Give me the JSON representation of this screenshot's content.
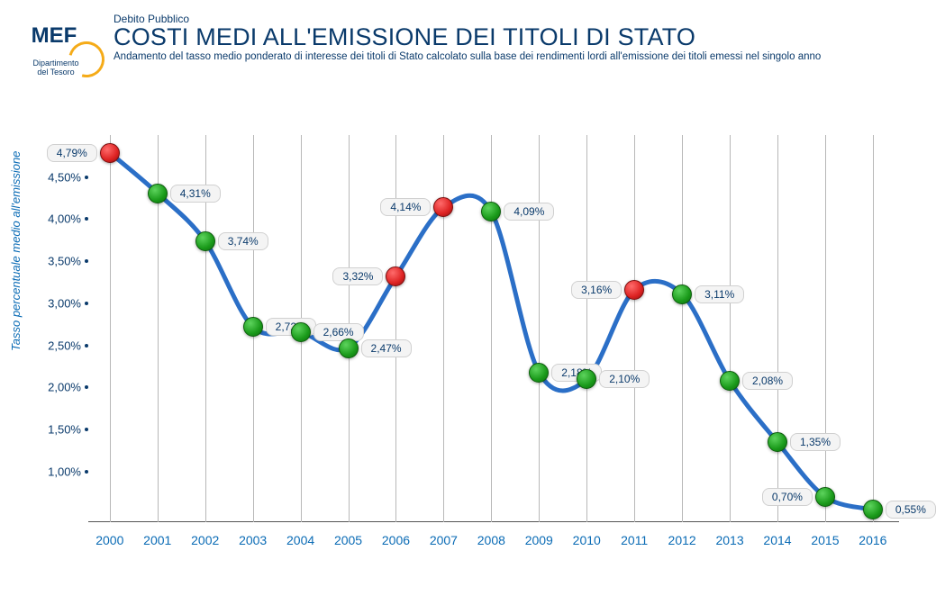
{
  "header": {
    "logo_text": "MEF",
    "logo_sub1": "Dipartimento",
    "logo_sub2": "del Tesoro",
    "pretitle": "Debito Pubblico",
    "title": "COSTI MEDI ALL'EMISSIONE DEI TITOLI DI STATO",
    "subtitle": "Andamento del tasso medio ponderato di interesse dei titoli di Stato calcolato sulla base dei rendimenti lordi all'emissione dei titoli emessi nel singolo anno"
  },
  "chart": {
    "type": "line",
    "y_axis_label": "Tasso percentuale medio all'emissione",
    "y_domain": [
      0.4,
      5.0
    ],
    "y_ticks": [
      1.0,
      1.5,
      2.0,
      2.5,
      3.0,
      3.5,
      4.0,
      4.5
    ],
    "y_tick_labels": [
      "1,00%",
      "1,50%",
      "2,00%",
      "2,50%",
      "3,00%",
      "3,50%",
      "4,00%",
      "4,50%"
    ],
    "line_color": "#2b6fc7",
    "line_width": 5,
    "grid_color": "#b8b8b8",
    "text_color": "#0a3a6b",
    "axis_text_color": "#0a6bb5",
    "point_radius": 10,
    "green": "#1a9a1a",
    "red": "#d22222",
    "background_color": "#ffffff",
    "title_fontsize": 27,
    "label_fontsize": 13,
    "years": [
      "2000",
      "2001",
      "2002",
      "2003",
      "2004",
      "2005",
      "2006",
      "2007",
      "2008",
      "2009",
      "2010",
      "2011",
      "2012",
      "2013",
      "2014",
      "2015",
      "2016"
    ],
    "points": [
      {
        "year": "2000",
        "value": 4.79,
        "label": "4,79%",
        "color": "red",
        "label_side": "left"
      },
      {
        "year": "2001",
        "value": 4.31,
        "label": "4,31%",
        "color": "green",
        "label_side": "right"
      },
      {
        "year": "2002",
        "value": 3.74,
        "label": "3,74%",
        "color": "green",
        "label_side": "right"
      },
      {
        "year": "2003",
        "value": 2.72,
        "label": "2,72%",
        "color": "green",
        "label_side": "right"
      },
      {
        "year": "2004",
        "value": 2.66,
        "label": "2,66%",
        "color": "green",
        "label_side": "right"
      },
      {
        "year": "2005",
        "value": 2.47,
        "label": "2,47%",
        "color": "green",
        "label_side": "right"
      },
      {
        "year": "2006",
        "value": 3.32,
        "label": "3,32%",
        "color": "red",
        "label_side": "left"
      },
      {
        "year": "2007",
        "value": 4.14,
        "label": "4,14%",
        "color": "red",
        "label_side": "left"
      },
      {
        "year": "2008",
        "value": 4.09,
        "label": "4,09%",
        "color": "green",
        "label_side": "right"
      },
      {
        "year": "2009",
        "value": 2.18,
        "label": "2,18%",
        "color": "green",
        "label_side": "right"
      },
      {
        "year": "2010",
        "value": 2.1,
        "label": "2,10%",
        "color": "green",
        "label_side": "right"
      },
      {
        "year": "2011",
        "value": 3.16,
        "label": "3,16%",
        "color": "red",
        "label_side": "left"
      },
      {
        "year": "2012",
        "value": 3.11,
        "label": "3,11%",
        "color": "green",
        "label_side": "right"
      },
      {
        "year": "2013",
        "value": 2.08,
        "label": "2,08%",
        "color": "green",
        "label_side": "right"
      },
      {
        "year": "2014",
        "value": 1.35,
        "label": "1,35%",
        "color": "green",
        "label_side": "right"
      },
      {
        "year": "2015",
        "value": 0.7,
        "label": "0,70%",
        "color": "green",
        "label_side": "left"
      },
      {
        "year": "2016",
        "value": 0.55,
        "label": "0,55%",
        "color": "green",
        "label_side": "right"
      }
    ]
  }
}
